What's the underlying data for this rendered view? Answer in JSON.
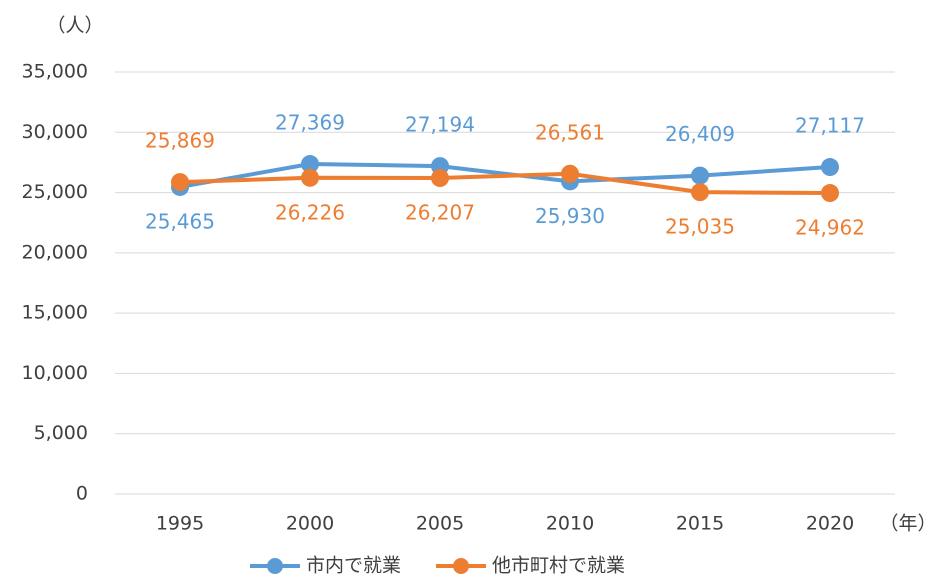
{
  "chart_data": {
    "type": "line",
    "y_label": "（人）",
    "x_label": "（年）",
    "categories": [
      "1995",
      "2000",
      "2005",
      "2010",
      "2015",
      "2020"
    ],
    "series": [
      {
        "name": "市内で就業",
        "color": "#5b9bd5",
        "values": [
          25465,
          27369,
          27194,
          25930,
          26409,
          27117
        ],
        "value_labels": [
          "25,465",
          "27,369",
          "27,194",
          "25,930",
          "26,409",
          "27,117"
        ]
      },
      {
        "name": "他市町村で就業",
        "color": "#ed7d31",
        "values": [
          25869,
          26226,
          26207,
          26561,
          25035,
          24962
        ],
        "value_labels": [
          "25,869",
          "26,226",
          "26,207",
          "26,561",
          "25,035",
          "24,962"
        ]
      }
    ],
    "ylim": [
      0,
      35000
    ],
    "yticks": [
      0,
      {
        "value": 5000,
        "label": "5,000"
      },
      {
        "value": 10000,
        "label": "10,000"
      },
      {
        "value": 15000,
        "label": "15,000"
      },
      {
        "value": 20000,
        "label": "20,000"
      },
      {
        "value": 25000,
        "label": "25,000"
      },
      {
        "value": 30000,
        "label": "30,000"
      },
      {
        "value": 35000,
        "label": "35,000"
      }
    ],
    "grid": true,
    "legend": "bottom"
  }
}
